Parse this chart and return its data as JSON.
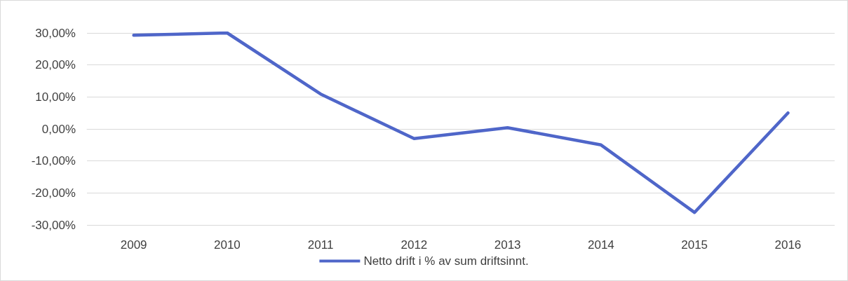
{
  "chart_data": {
    "type": "line",
    "categories": [
      "2009",
      "2010",
      "2011",
      "2012",
      "2013",
      "2014",
      "2015",
      "2016"
    ],
    "series": [
      {
        "name": "Netto drift i % av sum driftsinnt.",
        "color": "#4f66c9",
        "values": [
          29.3,
          30.0,
          10.9,
          -3.0,
          0.4,
          -5.0,
          -26.1,
          5.0
        ]
      }
    ],
    "ylim": [
      -30,
      30
    ],
    "yticks": [
      {
        "value": -30,
        "label": "-30,00%"
      },
      {
        "value": -20,
        "label": "-20,00%"
      },
      {
        "value": -10,
        "label": "-10,00%"
      },
      {
        "value": 0,
        "label": "0,00%"
      },
      {
        "value": 10,
        "label": "10,00%"
      },
      {
        "value": 20,
        "label": "20,00%"
      },
      {
        "value": 30,
        "label": "30,00%"
      }
    ],
    "grid": "y",
    "legend": "bottom",
    "marker": "none",
    "line_style": "solid"
  }
}
